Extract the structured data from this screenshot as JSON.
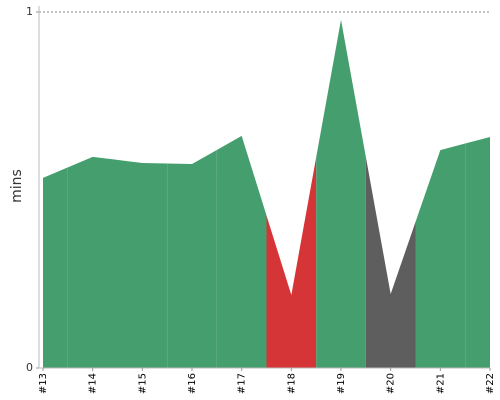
{
  "chart_data": {
    "type": "area",
    "y_label": "mins",
    "categories": [
      "#13",
      "#14",
      "#15",
      "#16",
      "#17",
      "#18",
      "#19",
      "#20",
      "#21",
      "#22"
    ],
    "values": [
      0.534,
      0.593,
      0.576,
      0.573,
      0.652,
      0.205,
      0.978,
      0.208,
      0.612,
      0.649
    ],
    "point_colors": [
      "#459e6d",
      "#459e6d",
      "#459e6d",
      "#459e6d",
      "#459e6d",
      "#d63537",
      "#459e6d",
      "#5e5e5e",
      "#459e6d",
      "#459e6d"
    ],
    "ylim": [
      0,
      1
    ],
    "yticks": [
      0,
      1
    ],
    "grid": true
  }
}
